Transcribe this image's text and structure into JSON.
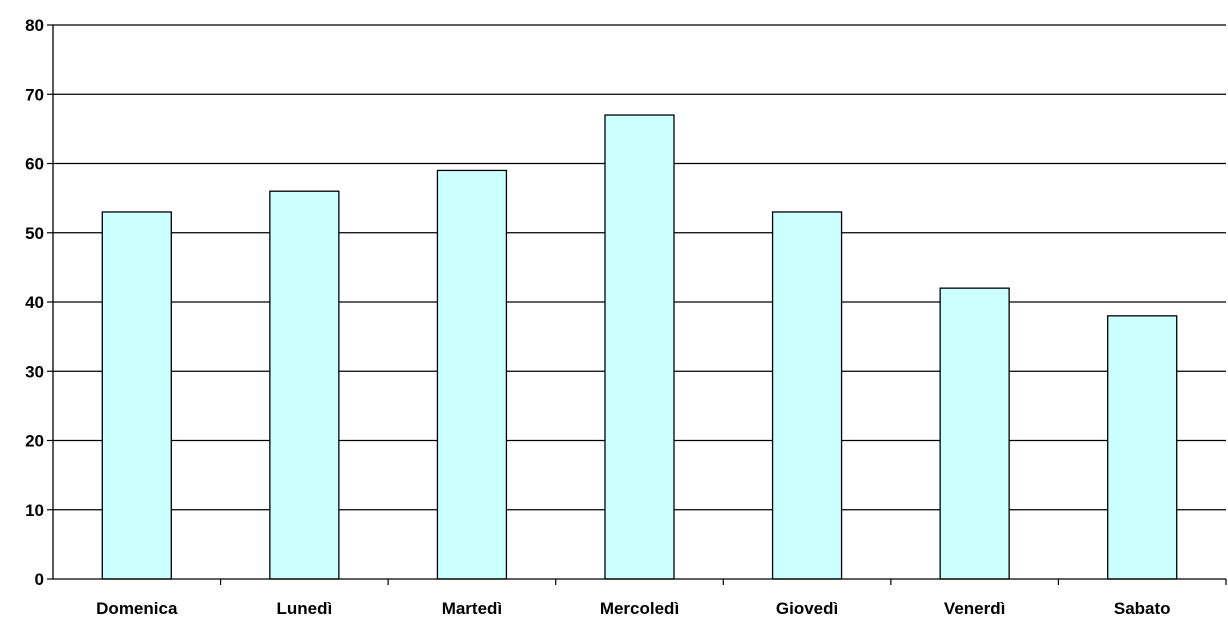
{
  "chart_data": {
    "type": "bar",
    "categories": [
      "Domenica",
      "Lunedì",
      "Martedì",
      "Mercoledì",
      "Giovedì",
      "Venerdì",
      "Sabato"
    ],
    "values": [
      53,
      56,
      59,
      67,
      53,
      42,
      38
    ],
    "ylim": [
      0,
      80
    ],
    "yticks": [
      "0",
      "10",
      "20",
      "30",
      "40",
      "50",
      "60",
      "70",
      "80"
    ],
    "grid": true,
    "legend": "none",
    "colors": {
      "bar_fill": "#ccffff",
      "bar_stroke": "#000000",
      "grid": "#000000"
    }
  }
}
